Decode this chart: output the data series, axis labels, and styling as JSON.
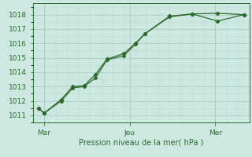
{
  "title": "",
  "xlabel": "Pression niveau de la mer( hPa )",
  "bg_color": "#cce8e0",
  "grid_major_color": "#aaccc4",
  "grid_minor_color": "#bbddd6",
  "line_color": "#2d6b2d",
  "ylim": [
    1010.5,
    1018.8
  ],
  "yticks": [
    1011,
    1012,
    1013,
    1014,
    1015,
    1016,
    1017,
    1018
  ],
  "xlim": [
    0,
    19
  ],
  "x_tick_positions": [
    1,
    8.5,
    16
  ],
  "x_tick_labels": [
    "Mar",
    "Jeu",
    "Mer"
  ],
  "x_vlines": [
    1,
    8.5,
    16
  ],
  "series1_x": [
    0.5,
    1.0,
    2.5,
    3.5,
    4.5,
    5.5,
    6.5,
    8.0,
    9.0,
    9.8,
    12.0,
    14.0,
    16.2,
    18.5
  ],
  "series1_y": [
    1011.5,
    1011.15,
    1012.0,
    1012.9,
    1013.0,
    1013.6,
    1014.85,
    1015.15,
    1015.95,
    1016.65,
    1017.85,
    1018.05,
    1017.55,
    1018.0
  ],
  "series2_x": [
    0.5,
    1.0,
    2.5,
    3.5,
    4.5,
    5.5,
    6.5,
    8.0,
    9.0,
    9.8,
    12.0,
    14.0,
    16.2,
    18.5
  ],
  "series2_y": [
    1011.5,
    1011.15,
    1012.1,
    1013.0,
    1013.05,
    1013.85,
    1014.9,
    1015.3,
    1016.0,
    1016.65,
    1017.9,
    1018.05,
    1018.1,
    1018.0
  ]
}
